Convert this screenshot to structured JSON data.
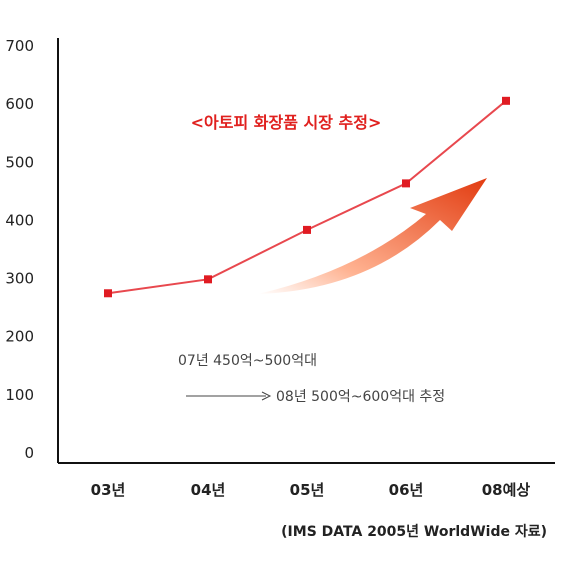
{
  "chart_data": {
    "type": "line",
    "title": "<아토피 화장품 시장 추정>",
    "categories": [
      "03년",
      "04년",
      "05년",
      "06년",
      "08예상"
    ],
    "values": [
      273,
      297,
      382,
      462,
      604
    ],
    "ylim": [
      0,
      700
    ],
    "yticks": [
      0,
      100,
      200,
      300,
      400,
      500,
      600,
      700
    ],
    "grid": false,
    "annotations": {
      "line1": "07년 450억~500억대",
      "line2": "08년 500억~600억대 추정"
    },
    "source": "(IMS DATA 2005년 WorldWide 자료)"
  },
  "colors": {
    "line": "#e8484e",
    "marker": "#e01b22",
    "title": "#e0201e",
    "axis": "#111111",
    "tick_text": "#222222",
    "annotation_text": "#444444",
    "arrow_dark": "#e23b10",
    "arrow_light": "#ffb392"
  }
}
